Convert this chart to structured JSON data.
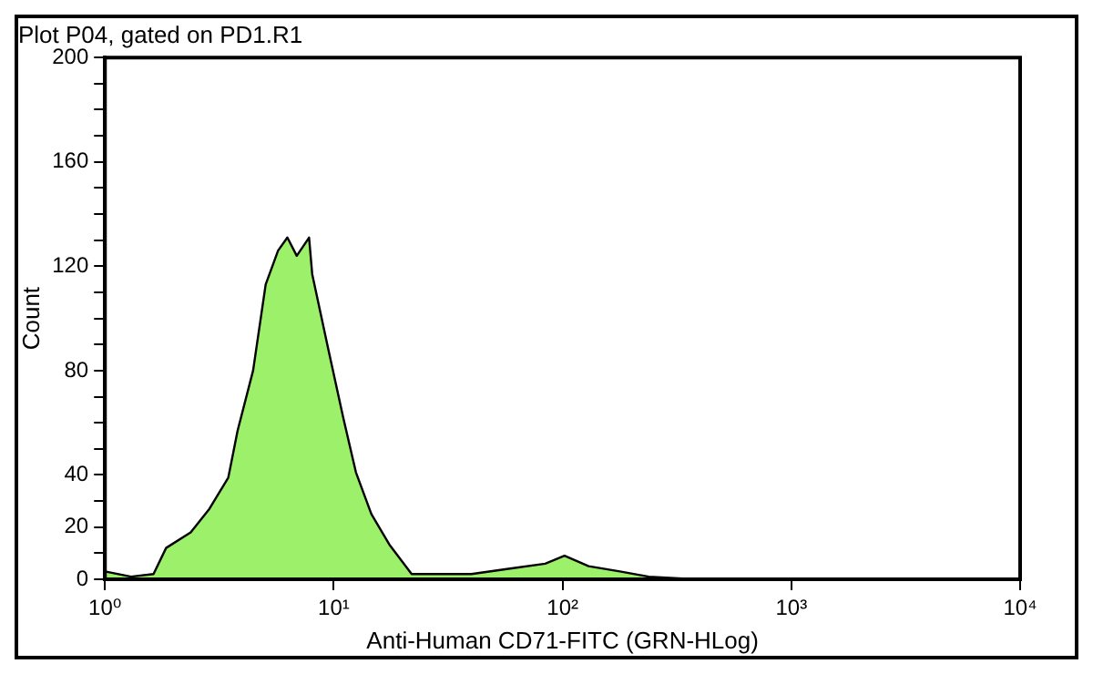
{
  "chart_data": {
    "type": "area",
    "title": "Plot P04, gated on PD1.R1",
    "xlabel": "Anti-Human CD71-FITC (GRN-HLog)",
    "ylabel": "Count",
    "log": "x",
    "grid": false,
    "legend": false,
    "marker": "none",
    "xlim": [
      1,
      10000
    ],
    "xticks": [
      {
        "value": 1,
        "label": "10⁰"
      },
      {
        "value": 10,
        "label": "10¹"
      },
      {
        "value": 100,
        "label": "10²"
      },
      {
        "value": 1000,
        "label": "10³"
      },
      {
        "value": 10000,
        "label": "10⁴"
      }
    ],
    "ylim": [
      0,
      200
    ],
    "yticks": [
      0,
      {
        "value": 10,
        "label": null
      },
      20,
      {
        "value": 30,
        "label": null
      },
      40,
      {
        "value": 50,
        "label": null
      },
      {
        "value": 60,
        "label": null
      },
      {
        "value": 70,
        "label": null
      },
      80,
      {
        "value": 90,
        "label": null
      },
      {
        "value": 100,
        "label": null
      },
      {
        "value": 110,
        "label": null
      },
      120,
      {
        "value": 130,
        "label": null
      },
      {
        "value": 140,
        "label": null
      },
      {
        "value": 150,
        "label": null
      },
      160,
      {
        "value": 170,
        "label": null
      },
      {
        "value": 180,
        "label": null
      },
      {
        "value": 190,
        "label": null
      },
      200
    ],
    "series": [
      {
        "color": "#9cf06a",
        "x": [
          1,
          1.3,
          1.63,
          1.85,
          2.37,
          2.86,
          3.46,
          3.8,
          4.44,
          5.04,
          5.71,
          6.27,
          6.89,
          7.8,
          8.05,
          9.42,
          11,
          12.5,
          14.6,
          17.6,
          21.9,
          30,
          40,
          58,
          84,
          102,
          130,
          178,
          238,
          380
        ],
        "values": [
          3,
          1,
          2,
          12,
          18,
          27,
          39,
          57,
          80,
          113,
          126,
          131,
          124,
          131,
          117,
          89,
          62,
          41,
          25,
          13,
          2,
          2,
          2,
          4,
          6,
          9,
          5,
          3,
          1,
          0
        ]
      }
    ]
  }
}
